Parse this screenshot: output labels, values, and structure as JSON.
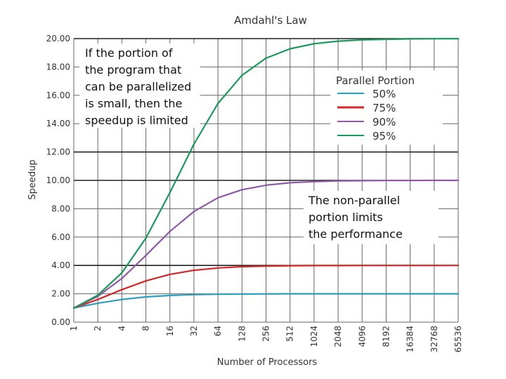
{
  "chart_data": {
    "type": "line",
    "title": "Amdahl's Law",
    "xlabel": "Number of Processors",
    "ylabel": "Speedup",
    "x": [
      1,
      2,
      4,
      8,
      16,
      32,
      64,
      128,
      256,
      512,
      1024,
      2048,
      4096,
      8192,
      16384,
      32768,
      65536
    ],
    "x_tick_labels": [
      "1",
      "2",
      "4",
      "8",
      "16",
      "32",
      "64",
      "128",
      "256",
      "512",
      "1024",
      "2048",
      "4096",
      "8192",
      "16384",
      "32768",
      "65536"
    ],
    "x_scale": "log2",
    "ylim": [
      0,
      20
    ],
    "y_tick_labels": [
      "0.00",
      "2.00",
      "4.00",
      "6.00",
      "8.00",
      "10.00",
      "12.00",
      "14.00",
      "16.00",
      "18.00",
      "20.00"
    ],
    "y_major_lines": [
      4,
      10,
      12,
      20
    ],
    "grid": true,
    "legend": {
      "title": "Parallel Portion",
      "placement": "top-right"
    },
    "series": [
      {
        "name": "50%",
        "color": "#2a9fbf",
        "values": [
          1.0,
          1.33,
          1.6,
          1.78,
          1.88,
          1.94,
          1.97,
          1.98,
          1.99,
          2.0,
          2.0,
          2.0,
          2.0,
          2.0,
          2.0,
          2.0,
          2.0
        ]
      },
      {
        "name": "75%",
        "color": "#d62728",
        "values": [
          1.0,
          1.6,
          2.29,
          2.91,
          3.37,
          3.66,
          3.82,
          3.91,
          3.95,
          3.98,
          3.99,
          3.99,
          4.0,
          4.0,
          4.0,
          4.0,
          4.0
        ]
      },
      {
        "name": "90%",
        "color": "#8e5aa8",
        "values": [
          1.0,
          1.82,
          3.08,
          4.71,
          6.4,
          7.8,
          8.77,
          9.34,
          9.66,
          9.83,
          9.91,
          9.96,
          9.98,
          9.99,
          9.99,
          10.0,
          10.0
        ]
      },
      {
        "name": "95%",
        "color": "#1a9a5a",
        "values": [
          1.0,
          1.9,
          3.48,
          5.93,
          9.14,
          12.55,
          15.42,
          17.41,
          18.62,
          19.28,
          19.64,
          19.82,
          19.91,
          19.95,
          19.98,
          19.99,
          19.99
        ]
      }
    ],
    "annotations": [
      {
        "lines": [
          "If the portion of",
          "the program that",
          "can be parallelized",
          "is small, then the",
          "speedup is limited"
        ]
      },
      {
        "lines": [
          "The non-parallel",
          "portion limits",
          "the performance"
        ]
      }
    ]
  }
}
